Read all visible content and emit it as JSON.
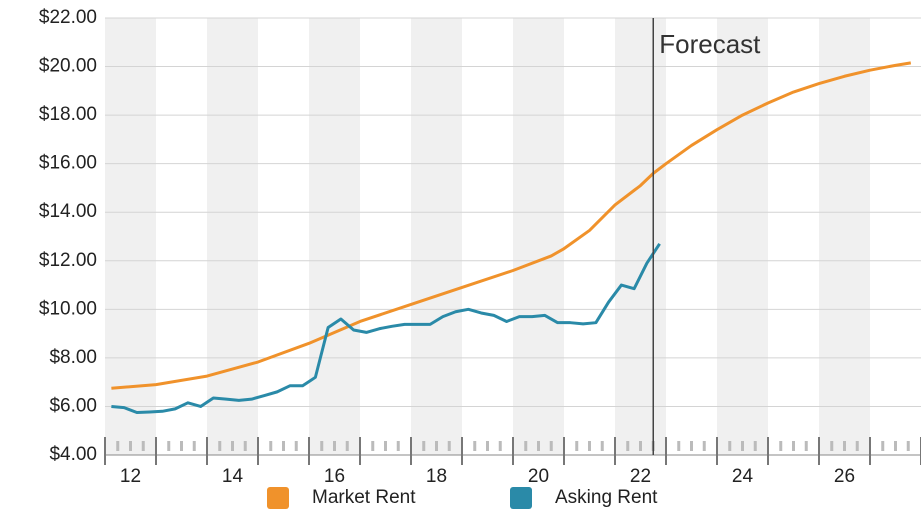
{
  "chart_data": {
    "type": "line",
    "annotation": {
      "text": "Forecast",
      "x": 22.25
    },
    "xlim": [
      11.5,
      27.5
    ],
    "xticks": [
      12,
      14,
      16,
      18,
      20,
      22,
      24,
      26
    ],
    "ylim": [
      4,
      22
    ],
    "yticks": [
      {
        "value": 4,
        "label": "$4.00"
      },
      {
        "value": 6,
        "label": "$6.00"
      },
      {
        "value": 8,
        "label": "$8.00"
      },
      {
        "value": 10,
        "label": "$10.00"
      },
      {
        "value": 12,
        "label": "$12.00"
      },
      {
        "value": 14,
        "label": "$14.00"
      },
      {
        "value": 16,
        "label": "$16.00"
      },
      {
        "value": 18,
        "label": "$18.00"
      },
      {
        "value": 20,
        "label": "$20.00"
      },
      {
        "value": 22,
        "label": "$22.00"
      }
    ],
    "grid": true,
    "series": [
      {
        "name": "Market Rent",
        "color": "#f0922b",
        "x": [
          11.625,
          12.5,
          13.5,
          14.5,
          15.5,
          16.5,
          17.5,
          18.5,
          19.5,
          20.25,
          20.5,
          21,
          21.5,
          22,
          22.25,
          22.5,
          23,
          23.5,
          24,
          24.5,
          25,
          25.5,
          26,
          26.5,
          27,
          27.3
        ],
        "values": [
          6.75,
          6.9,
          7.25,
          7.83,
          8.6,
          9.5,
          10.2,
          10.9,
          11.6,
          12.2,
          12.5,
          13.25,
          14.3,
          15.1,
          15.6,
          16.0,
          16.75,
          17.4,
          18.0,
          18.5,
          18.95,
          19.3,
          19.6,
          19.85,
          20.05,
          20.15
        ]
      },
      {
        "name": "Asking Rent",
        "color": "#2a8aa8",
        "x": [
          11.625,
          11.875,
          12.125,
          12.375,
          12.625,
          12.875,
          13.125,
          13.375,
          13.625,
          13.875,
          14.125,
          14.375,
          14.625,
          14.875,
          15.125,
          15.375,
          15.625,
          15.875,
          16.125,
          16.375,
          16.625,
          16.875,
          17.125,
          17.375,
          17.625,
          17.875,
          18.125,
          18.375,
          18.625,
          18.875,
          19.125,
          19.375,
          19.625,
          19.875,
          20.125,
          20.375,
          20.625,
          20.875,
          21.125,
          21.375,
          21.625,
          21.875,
          22.125,
          22.375
        ],
        "values": [
          6.0,
          5.95,
          5.75,
          5.77,
          5.8,
          5.9,
          6.15,
          6.0,
          6.35,
          6.3,
          6.25,
          6.3,
          6.45,
          6.6,
          6.85,
          6.85,
          7.2,
          9.25,
          9.6,
          9.15,
          9.05,
          9.2,
          9.3,
          9.38,
          9.38,
          9.38,
          9.7,
          9.9,
          10.0,
          9.85,
          9.75,
          9.5,
          9.7,
          9.7,
          9.75,
          9.45,
          9.45,
          9.4,
          9.45,
          10.3,
          11.0,
          10.85,
          11.9,
          12.7
        ]
      }
    ]
  }
}
